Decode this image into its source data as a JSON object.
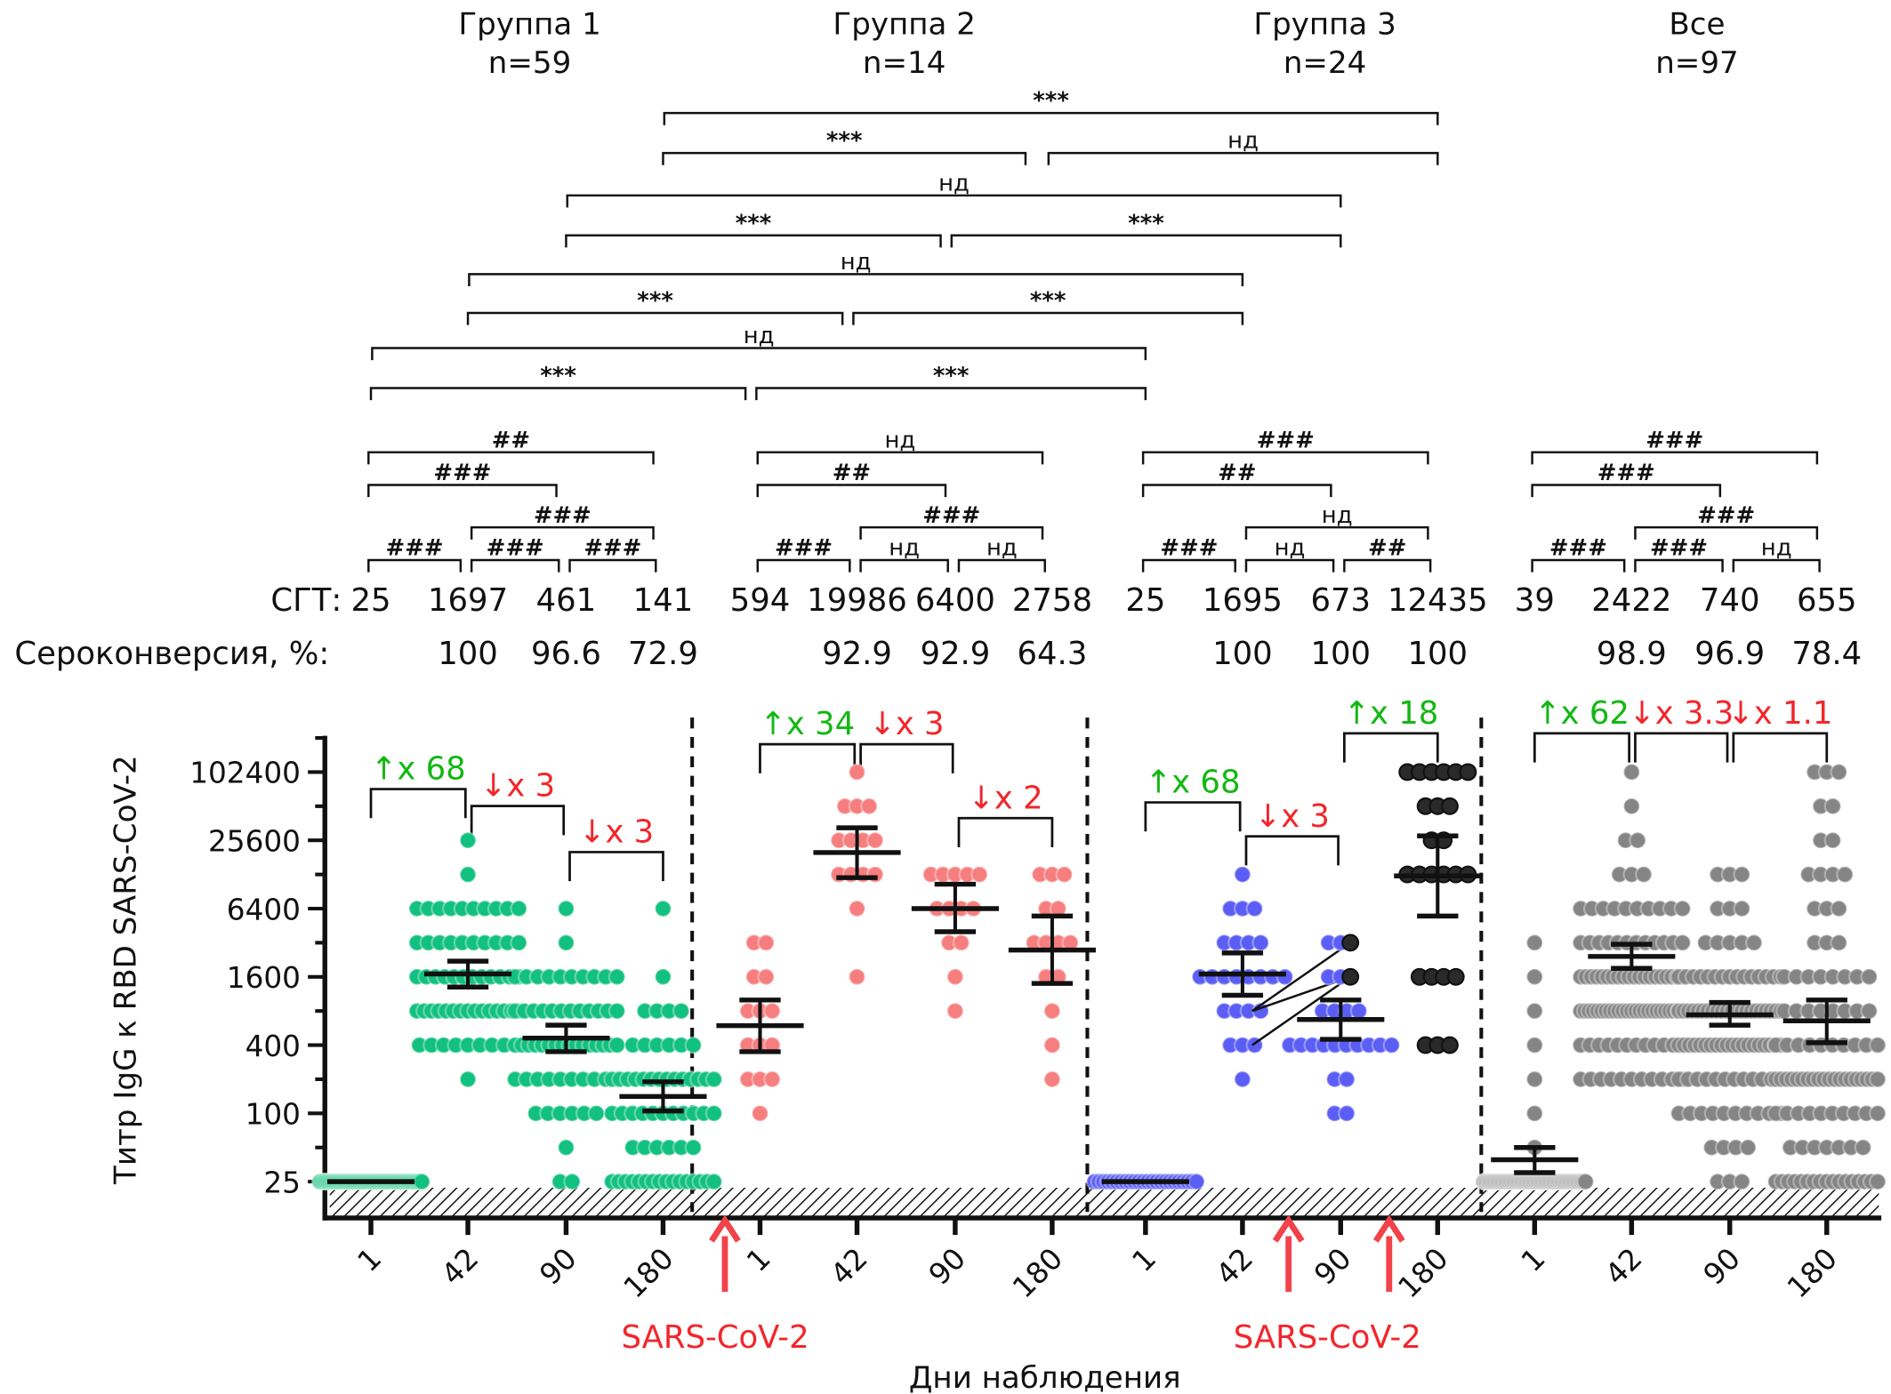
{
  "chart_data": {
    "type": "scatter",
    "ylabel": "Титр IgG к RBD SARS-CoV-2",
    "xlabel": "Дни наблюдения",
    "y_scale": "log2",
    "yticks": [
      25,
      100,
      400,
      1600,
      6400,
      25600,
      102400
    ],
    "detection_limit_hatched_below": 25,
    "row_labels": {
      "gmt": "СГТ:",
      "seroconversion": "Сероконверсия, %:"
    },
    "infection_label": "SARS-CoV-2",
    "groups": [
      {
        "name": "Группа 1",
        "n_label": "n=59",
        "color": "#12c07f",
        "days": [
          "1",
          "42",
          "90",
          "180"
        ],
        "gmt": [
          "25",
          "1697",
          "461",
          "141"
        ],
        "seroconversion": [
          "",
          "100",
          "96.6",
          "72.9"
        ],
        "points": [
          [
            [
              25,
              59
            ]
          ],
          [
            [
              25600,
              1
            ],
            [
              12800,
              1
            ],
            [
              6400,
              10
            ],
            [
              3200,
              10
            ],
            [
              1600,
              12
            ],
            [
              800,
              15
            ],
            [
              400,
              9
            ],
            [
              200,
              1
            ]
          ],
          [
            [
              6400,
              1
            ],
            [
              3200,
              1
            ],
            [
              1600,
              10
            ],
            [
              800,
              12
            ],
            [
              400,
              16
            ],
            [
              200,
              10
            ],
            [
              100,
              6
            ],
            [
              50,
              1
            ],
            [
              25,
              2
            ]
          ],
          [
            [
              6400,
              1
            ],
            [
              1600,
              1
            ],
            [
              800,
              4
            ],
            [
              400,
              6
            ],
            [
              200,
              14
            ],
            [
              100,
              11
            ],
            [
              50,
              6
            ],
            [
              25,
              16
            ]
          ]
        ],
        "mean": [
          25,
          1697,
          461,
          141
        ],
        "ci": [
          null,
          [
            1300,
            2200
          ],
          [
            350,
            600
          ],
          [
            105,
            190
          ]
        ],
        "folds": [
          {
            "from": 0,
            "to": 1,
            "label": "↑x 68",
            "direction": "up"
          },
          {
            "from": 1,
            "to": 2,
            "label": "↓x 3",
            "direction": "down"
          },
          {
            "from": 2,
            "to": 3,
            "label": "↓x 3",
            "direction": "down"
          }
        ],
        "within": [
          {
            "from": 0,
            "to": 3,
            "label": "##"
          },
          {
            "from": 0,
            "to": 2,
            "label": "###"
          },
          {
            "from": 1,
            "to": 3,
            "label": "###"
          },
          {
            "from": 0,
            "to": 1,
            "label": "###"
          },
          {
            "from": 1,
            "to": 2,
            "label": "###"
          },
          {
            "from": 2,
            "to": 3,
            "label": "###"
          }
        ]
      },
      {
        "name": "Группа 2",
        "n_label": "n=14",
        "color": "#f77e7e",
        "days": [
          "1",
          "42",
          "90",
          "180"
        ],
        "gmt": [
          "594",
          "19986",
          "6400",
          "2758"
        ],
        "seroconversion": [
          "",
          "92.9",
          "92.9",
          "64.3"
        ],
        "infection_before_day_index": 0,
        "points": [
          [
            [
              3200,
              2
            ],
            [
              1600,
              2
            ],
            [
              800,
              3
            ],
            [
              400,
              3
            ],
            [
              200,
              3
            ],
            [
              100,
              1
            ]
          ],
          [
            [
              102400,
              1
            ],
            [
              51200,
              3
            ],
            [
              25600,
              4
            ],
            [
              12800,
              4
            ],
            [
              6400,
              1
            ],
            [
              1600,
              1
            ]
          ],
          [
            [
              12800,
              5
            ],
            [
              6400,
              4
            ],
            [
              3200,
              2
            ],
            [
              1600,
              1
            ],
            [
              800,
              1
            ]
          ],
          [
            [
              12800,
              3
            ],
            [
              6400,
              2
            ],
            [
              3200,
              4
            ],
            [
              1600,
              2
            ],
            [
              800,
              1
            ],
            [
              400,
              1
            ],
            [
              200,
              1
            ]
          ]
        ],
        "mean": [
          594,
          19986,
          6400,
          2758
        ],
        "ci": [
          [
            350,
            1000
          ],
          [
            12000,
            33000
          ],
          [
            4000,
            10500
          ],
          [
            1400,
            5500
          ]
        ],
        "folds": [
          {
            "from": 0,
            "to": 1,
            "label": "↑x 34",
            "direction": "up"
          },
          {
            "from": 1,
            "to": 2,
            "label": "↓x 3",
            "direction": "down"
          },
          {
            "from": 2,
            "to": 3,
            "label": "↓x 2",
            "direction": "down"
          }
        ],
        "within": [
          {
            "from": 0,
            "to": 3,
            "label": "нд"
          },
          {
            "from": 0,
            "to": 2,
            "label": "##"
          },
          {
            "from": 1,
            "to": 3,
            "label": "###"
          },
          {
            "from": 0,
            "to": 1,
            "label": "###"
          },
          {
            "from": 1,
            "to": 2,
            "label": "нд"
          },
          {
            "from": 2,
            "to": 3,
            "label": "нд"
          }
        ]
      },
      {
        "name": "Группа 3",
        "n_label": "n=24",
        "color": "#5b5ef5",
        "secondary_color": "#2a2a2a",
        "days": [
          "1",
          "42",
          "90",
          "180"
        ],
        "gmt": [
          "25",
          "1695",
          "673",
          "12435"
        ],
        "seroconversion": [
          "",
          "100",
          "100",
          "100"
        ],
        "infection_between_day_indexes": [
          [
            1,
            2
          ],
          [
            2,
            3
          ]
        ],
        "points": [
          [
            [
              25,
              24
            ]
          ],
          [
            [
              12800,
              1
            ],
            [
              6400,
              3
            ],
            [
              3200,
              4
            ],
            [
              1600,
              8
            ],
            [
              800,
              4
            ],
            [
              400,
              3
            ],
            [
              200,
              1
            ]
          ],
          [
            [
              3200,
              3
            ],
            [
              1600,
              3
            ],
            [
              800,
              4
            ],
            [
              400,
              10
            ],
            [
              200,
              2
            ],
            [
              100,
              2
            ]
          ],
          [
            [
              102400,
              6
            ],
            [
              51200,
              3
            ],
            [
              25600,
              2
            ],
            [
              12800,
              6
            ],
            [
              1600,
              4
            ],
            [
              400,
              3
            ]
          ]
        ],
        "secondary_color_day_indexes": [
          3
        ],
        "highlighted_points": [
          {
            "day": 2,
            "value": 3200
          },
          {
            "day": 2,
            "value": 1600
          }
        ],
        "paired_lines": [
          {
            "from_value": 800,
            "to_value": 3200
          },
          {
            "from_value": 800,
            "to_value": 1600
          },
          {
            "from_value": 400,
            "to_value": 1600
          }
        ],
        "mean": [
          25,
          1695,
          673,
          12435
        ],
        "ci": [
          null,
          [
            1100,
            2600
          ],
          [
            450,
            1000
          ],
          [
            5500,
            28000
          ]
        ],
        "folds": [
          {
            "from": 0,
            "to": 1,
            "label": "↑x 68",
            "direction": "up"
          },
          {
            "from": 1,
            "to": 2,
            "label": "↓x 3",
            "direction": "down"
          },
          {
            "from": 2,
            "to": 3,
            "label": "↑x 18",
            "direction": "up"
          }
        ],
        "within": [
          {
            "from": 0,
            "to": 3,
            "label": "###"
          },
          {
            "from": 0,
            "to": 2,
            "label": "##"
          },
          {
            "from": 1,
            "to": 3,
            "label": "нд"
          },
          {
            "from": 0,
            "to": 1,
            "label": "###"
          },
          {
            "from": 1,
            "to": 2,
            "label": "нд"
          },
          {
            "from": 2,
            "to": 3,
            "label": "##"
          }
        ]
      },
      {
        "name": "Все",
        "n_label": "n=97",
        "color": "#858585",
        "days": [
          "1",
          "42",
          "90",
          "180"
        ],
        "gmt": [
          "39",
          "2422",
          "740",
          "655"
        ],
        "seroconversion": [
          "",
          "98.9",
          "96.9",
          "78.4"
        ],
        "points": [
          [
            [
              3200,
              1
            ],
            [
              1600,
              1
            ],
            [
              800,
              1
            ],
            [
              400,
              1
            ],
            [
              200,
              1
            ],
            [
              100,
              1
            ],
            [
              50,
              1
            ],
            [
              25,
              90
            ]
          ],
          [
            [
              102400,
              1
            ],
            [
              51200,
              1
            ],
            [
              25600,
              2
            ],
            [
              12800,
              3
            ],
            [
              6400,
              10
            ],
            [
              3200,
              12
            ],
            [
              1600,
              20
            ],
            [
              800,
              25
            ],
            [
              400,
              12
            ],
            [
              200,
              11
            ]
          ],
          [
            [
              12800,
              3
            ],
            [
              6400,
              3
            ],
            [
              3200,
              5
            ],
            [
              1600,
              15
            ],
            [
              800,
              22
            ],
            [
              400,
              20
            ],
            [
              200,
              12
            ],
            [
              100,
              10
            ],
            [
              50,
              4
            ],
            [
              25,
              3
            ]
          ],
          [
            [
              102400,
              3
            ],
            [
              51200,
              2
            ],
            [
              25600,
              2
            ],
            [
              12800,
              4
            ],
            [
              6400,
              3
            ],
            [
              3200,
              3
            ],
            [
              1600,
              8
            ],
            [
              800,
              8
            ],
            [
              400,
              10
            ],
            [
              200,
              20
            ],
            [
              100,
              10
            ],
            [
              50,
              7
            ],
            [
              25,
              17
            ]
          ]
        ],
        "mean": [
          39,
          2422,
          740,
          655
        ],
        "ci": [
          [
            30,
            50
          ],
          [
            1900,
            3100
          ],
          [
            600,
            950
          ],
          [
            420,
            1000
          ]
        ],
        "folds": [
          {
            "from": 0,
            "to": 1,
            "label": "↑x 62",
            "direction": "up"
          },
          {
            "from": 1,
            "to": 2,
            "label": "↓x 3.3",
            "direction": "down"
          },
          {
            "from": 2,
            "to": 3,
            "label": "↓x 1.1",
            "direction": "down"
          }
        ],
        "within": [
          {
            "from": 0,
            "to": 3,
            "label": "###"
          },
          {
            "from": 0,
            "to": 2,
            "label": "###"
          },
          {
            "from": 1,
            "to": 3,
            "label": "###"
          },
          {
            "from": 0,
            "to": 1,
            "label": "###"
          },
          {
            "from": 1,
            "to": 2,
            "label": "###"
          },
          {
            "from": 2,
            "to": 3,
            "label": "нд"
          }
        ]
      }
    ],
    "between_groups": [
      {
        "day": 3,
        "from_group": 0,
        "to_group": 2,
        "label": "***"
      },
      {
        "day": 3,
        "from_group": 0,
        "to_group": 1,
        "label": "***"
      },
      {
        "day": 3,
        "from_group": 1,
        "to_group": 2,
        "label": "нд"
      },
      {
        "day": 2,
        "from_group": 0,
        "to_group": 2,
        "label": "нд"
      },
      {
        "day": 2,
        "from_group": 0,
        "to_group": 1,
        "label": "***"
      },
      {
        "day": 2,
        "from_group": 1,
        "to_group": 2,
        "label": "***"
      },
      {
        "day": 1,
        "from_group": 0,
        "to_group": 2,
        "label": "нд"
      },
      {
        "day": 1,
        "from_group": 0,
        "to_group": 1,
        "label": "***"
      },
      {
        "day": 1,
        "from_group": 1,
        "to_group": 2,
        "label": "***"
      },
      {
        "day": 0,
        "from_group": 0,
        "to_group": 2,
        "label": "нд"
      },
      {
        "day": 0,
        "from_group": 0,
        "to_group": 1,
        "label": "***"
      },
      {
        "day": 0,
        "from_group": 1,
        "to_group": 2,
        "label": "***"
      }
    ],
    "colors": {
      "increase": "#12b812",
      "decrease": "#f2262b",
      "infection_arrow": "#f2424a",
      "mean_bar": "#111111"
    }
  }
}
